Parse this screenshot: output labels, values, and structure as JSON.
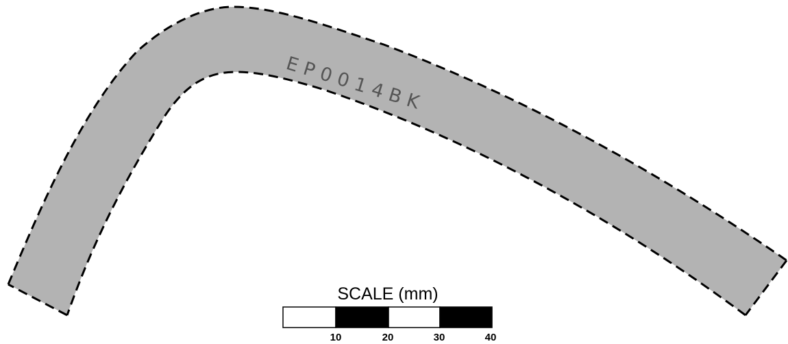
{
  "part": {
    "label": "EP0014BK",
    "fill_color": "#b3b3b3",
    "outline_color": "#000000",
    "outline_style": "dashed"
  },
  "scale_bar": {
    "title": "SCALE (mm)",
    "ticks": [
      "10",
      "20",
      "30",
      "40"
    ],
    "segment_colors": [
      "#ffffff",
      "#000000",
      "#ffffff",
      "#000000"
    ]
  }
}
